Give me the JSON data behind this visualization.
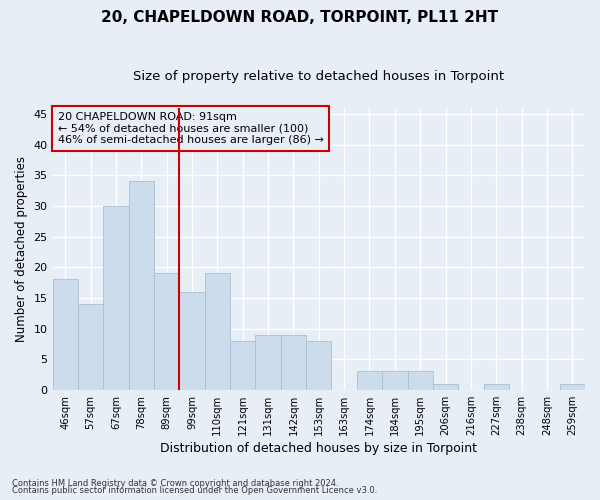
{
  "title1": "20, CHAPELDOWN ROAD, TORPOINT, PL11 2HT",
  "title2": "Size of property relative to detached houses in Torpoint",
  "xlabel": "Distribution of detached houses by size in Torpoint",
  "ylabel": "Number of detached properties",
  "footer1": "Contains HM Land Registry data © Crown copyright and database right 2024.",
  "footer2": "Contains public sector information licensed under the Open Government Licence v3.0.",
  "annotation_line1": "20 CHAPELDOWN ROAD: 91sqm",
  "annotation_line2": "← 54% of detached houses are smaller (100)",
  "annotation_line3": "46% of semi-detached houses are larger (86) →",
  "bar_labels": [
    "46sqm",
    "57sqm",
    "67sqm",
    "78sqm",
    "89sqm",
    "99sqm",
    "110sqm",
    "121sqm",
    "131sqm",
    "142sqm",
    "153sqm",
    "163sqm",
    "174sqm",
    "184sqm",
    "195sqm",
    "206sqm",
    "216sqm",
    "227sqm",
    "238sqm",
    "248sqm",
    "259sqm"
  ],
  "bar_values": [
    18,
    14,
    30,
    34,
    19,
    16,
    19,
    8,
    9,
    9,
    8,
    0,
    3,
    3,
    3,
    1,
    0,
    1,
    0,
    0,
    1
  ],
  "bar_color": "#ccdcec",
  "bar_edge_color": "#aabfd4",
  "vline_x_index": 4,
  "vline_color": "#cc0000",
  "annotation_box_color": "#cc0000",
  "ylim": [
    0,
    46
  ],
  "yticks": [
    0,
    5,
    10,
    15,
    20,
    25,
    30,
    35,
    40,
    45
  ],
  "background_color": "#e8eef6",
  "grid_color": "#ffffff",
  "title1_fontsize": 11,
  "title2_fontsize": 9.5,
  "xlabel_fontsize": 9,
  "ylabel_fontsize": 8.5
}
